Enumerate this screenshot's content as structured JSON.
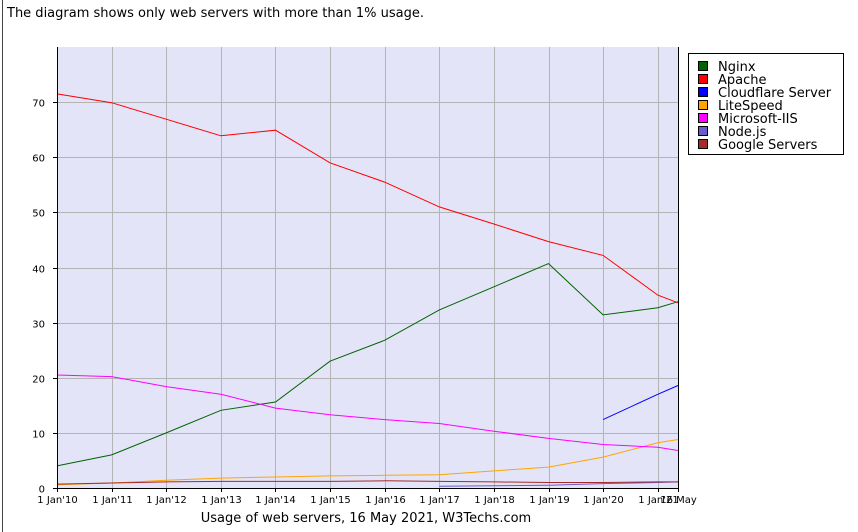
{
  "intro_text": "The diagram shows only web servers with more than 1% usage.",
  "caption": "Usage of web servers, 16 May 2021, W3Techs.com",
  "chart_data": {
    "type": "line",
    "xlabel": "",
    "ylabel": "",
    "ylim": [
      0,
      80
    ],
    "yticks": [
      0,
      10,
      20,
      30,
      40,
      50,
      60,
      70
    ],
    "grid": true,
    "legend_position": "right",
    "background": "#e4e4f8",
    "x_labels": [
      "1 Jan'10",
      "1 Jan'11",
      "1 Jan'12",
      "1 Jan'13",
      "1 Jan'14",
      "1 Jan'15",
      "1 Jan'16",
      "1 Jan'17",
      "1 Jan'18",
      "1 Jan'19",
      "1 Jan'20",
      "1 Jan'21",
      "16 May"
    ],
    "x": [
      "2010-01-01",
      "2011-01-01",
      "2012-01-01",
      "2013-01-01",
      "2014-01-01",
      "2015-01-01",
      "2016-01-01",
      "2017-01-01",
      "2018-01-01",
      "2019-01-01",
      "2020-01-01",
      "2021-01-01",
      "2021-05-16"
    ],
    "series": [
      {
        "name": "Nginx",
        "color": "#006400",
        "values": [
          4.0,
          6.0,
          10.0,
          14.1,
          15.6,
          23.0,
          26.8,
          32.3,
          36.5,
          40.7,
          31.4,
          32.7,
          33.8
        ]
      },
      {
        "name": "Apache",
        "color": "#ff0000",
        "values": [
          71.5,
          69.9,
          66.9,
          63.9,
          64.9,
          59.0,
          55.5,
          51.0,
          47.9,
          44.7,
          42.2,
          35.0,
          33.6
        ]
      },
      {
        "name": "Cloudflare Server",
        "color": "#0000ff",
        "values": [
          null,
          null,
          null,
          null,
          null,
          null,
          null,
          null,
          null,
          null,
          12.4,
          17.0,
          18.6
        ]
      },
      {
        "name": "LiteSpeed",
        "color": "#ffa500",
        "values": [
          0.6,
          0.9,
          1.4,
          1.8,
          2.0,
          2.2,
          2.3,
          2.4,
          3.1,
          3.8,
          5.6,
          8.2,
          8.8
        ]
      },
      {
        "name": "Microsoft-IIS",
        "color": "#ff00ff",
        "values": [
          20.5,
          20.2,
          18.4,
          17.0,
          14.5,
          13.3,
          12.4,
          11.7,
          10.3,
          9.0,
          7.9,
          7.4,
          6.8
        ]
      },
      {
        "name": "Node.js",
        "color": "#6a5acd",
        "values": [
          null,
          null,
          null,
          null,
          null,
          null,
          null,
          0.3,
          0.4,
          0.5,
          0.8,
          1.0,
          1.1
        ]
      },
      {
        "name": "Google Servers",
        "color": "#a52a2a",
        "values": [
          0.7,
          0.9,
          1.1,
          1.2,
          1.2,
          1.2,
          1.3,
          1.2,
          1.1,
          1.0,
          1.0,
          1.1,
          1.1
        ]
      }
    ]
  }
}
